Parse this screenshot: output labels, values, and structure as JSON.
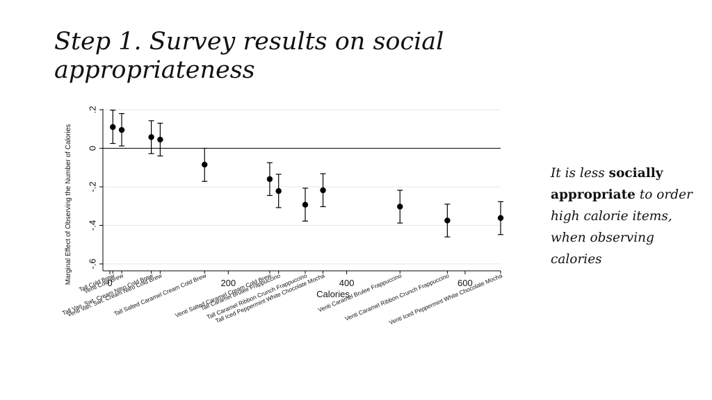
{
  "slide": {
    "title": "Step 1. Survey results on social appropriateness",
    "note": {
      "part1": "It is less ",
      "part2": "socially appropriate",
      "part3": " to order high calorie items, when observing calories"
    }
  },
  "chart_data": {
    "type": "scatter",
    "title": "",
    "xlabel": "Calories",
    "ylabel": "Marginal Effect of Observing the Number of Calories",
    "xlim": [
      0,
      660
    ],
    "ylim": [
      -0.62,
      0.2
    ],
    "x_ticks": [
      0,
      200,
      400,
      600
    ],
    "y_ticks": [
      0.2,
      0,
      -0.2,
      -0.4,
      -0.6
    ],
    "y_tick_labels": [
      ".2",
      "0",
      "-.2",
      "-.4",
      "-.6"
    ],
    "grid": true,
    "zero_line": true,
    "legend": "none",
    "series": [
      {
        "points": [
          {
            "label": "Tall Cold Brew",
            "x": 5,
            "y": 0.11,
            "lo": 0.025,
            "hi": 0.198
          },
          {
            "label": "Venti Cold Brew",
            "x": 20,
            "y": 0.095,
            "lo": 0.012,
            "hi": 0.18
          },
          {
            "label": "Tall Van. Swt. Cream Nitro Cold Brew",
            "x": 70,
            "y": 0.058,
            "lo": -0.028,
            "hi": 0.143
          },
          {
            "label": "Venti Van. Swt. Cream Nitro Cold Brew",
            "x": 85,
            "y": 0.045,
            "lo": -0.04,
            "hi": 0.13
          },
          {
            "label": "Tall Salted Caramel Cream Cold Brew",
            "x": 160,
            "y": -0.085,
            "lo": -0.172,
            "hi": 0.0
          },
          {
            "label": "Venti Salted Caramel Cream Cold Brew",
            "x": 270,
            "y": -0.16,
            "lo": -0.245,
            "hi": -0.075
          },
          {
            "label": "Tall Caramel Brulee Frappuccino",
            "x": 285,
            "y": -0.222,
            "lo": -0.308,
            "hi": -0.135
          },
          {
            "label": "Tall Caramel Ribbon Crunch Frappuccino",
            "x": 330,
            "y": -0.293,
            "lo": -0.378,
            "hi": -0.207
          },
          {
            "label": "Tall Iced Peppermint White Chocolate Mocha",
            "x": 360,
            "y": -0.218,
            "lo": -0.303,
            "hi": -0.132
          },
          {
            "label": "Venti Caramel Brulee Frappuccino",
            "x": 490,
            "y": -0.303,
            "lo": -0.388,
            "hi": -0.218
          },
          {
            "label": "Venti Caramel Ribbon Crunch Frappuccino",
            "x": 570,
            "y": -0.375,
            "lo": -0.46,
            "hi": -0.29
          },
          {
            "label": "Venti Iced Peppermint White Chocolate Mocha",
            "x": 660,
            "y": -0.362,
            "lo": -0.448,
            "hi": -0.277
          }
        ]
      }
    ],
    "colors": {
      "marker": "#000000",
      "grid": "#e6e6e6",
      "axis": "#000000"
    }
  }
}
